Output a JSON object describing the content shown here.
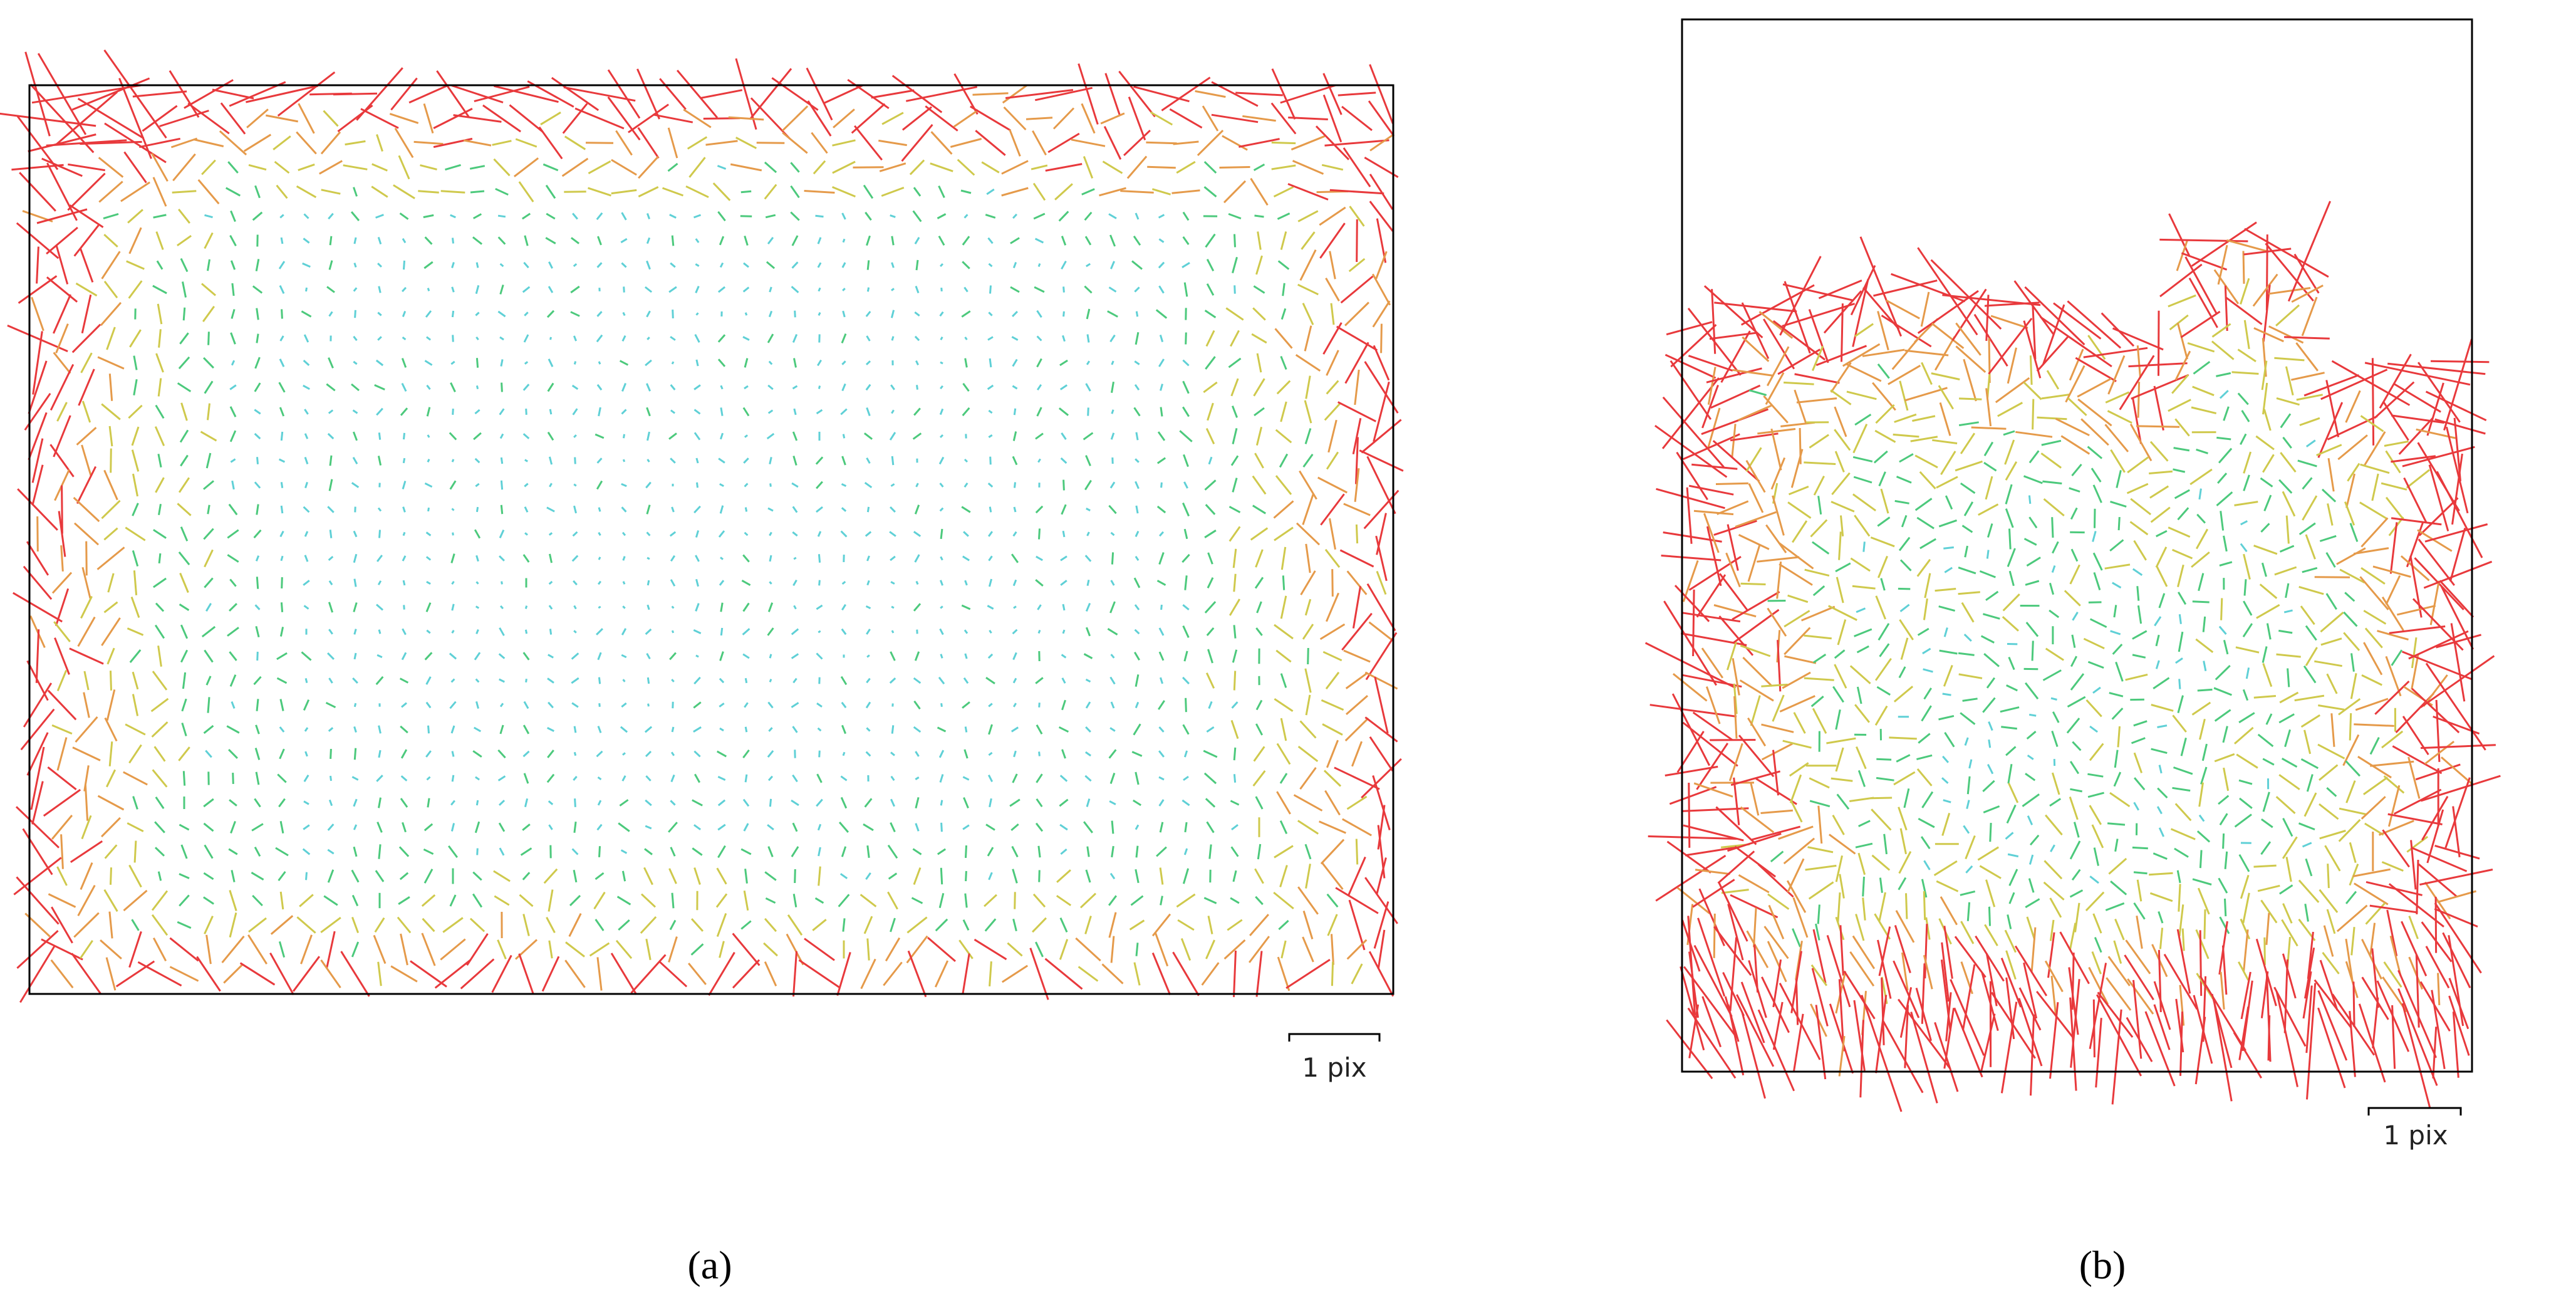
{
  "panels": [
    {
      "scale_label": "1 pix",
      "caption": "(a)"
    },
    {
      "scale_label": "1 pix",
      "caption": "(b)"
    }
  ]
}
